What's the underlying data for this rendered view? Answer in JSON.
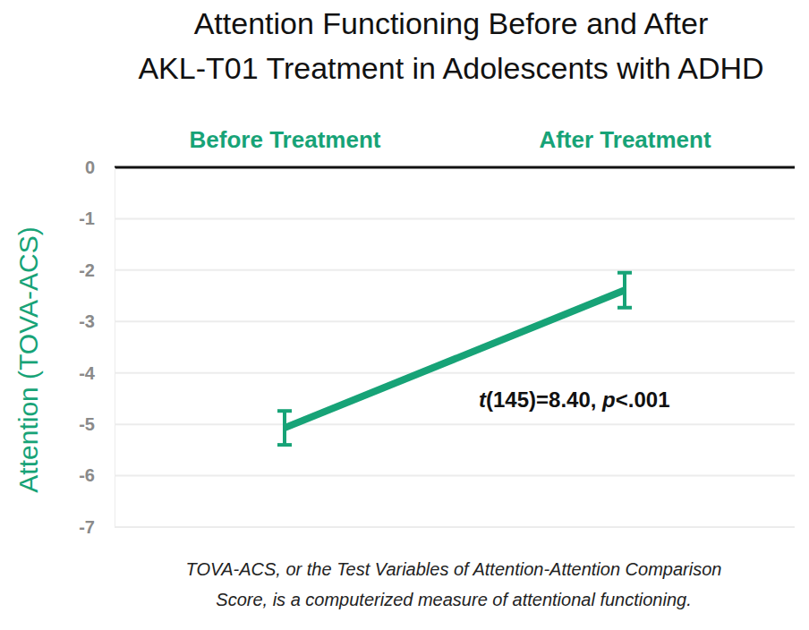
{
  "chart_data": {
    "type": "line",
    "title": [
      "Attention Functioning Before and After",
      "AKL-T01 Treatment in Adolescents with ADHD"
    ],
    "categories": [
      "Before Treatment",
      "After Treatment"
    ],
    "values": [
      -5.07,
      -2.39
    ],
    "errors": [
      0.33,
      0.34
    ],
    "color": "#17a377",
    "ylabel": "Attention (TOVA-ACS)",
    "ylim": [
      -7,
      0
    ],
    "yticks": [
      0,
      -1,
      -2,
      -3,
      -4,
      -5,
      -6,
      -7
    ],
    "grid": true,
    "annotation": "t(145)=8.40, p<.001",
    "note": [
      "TOVA-ACS, or the Test Variables of Attention-Attention Comparison",
      "Score, is a computerized measure of attentional functioning."
    ]
  }
}
